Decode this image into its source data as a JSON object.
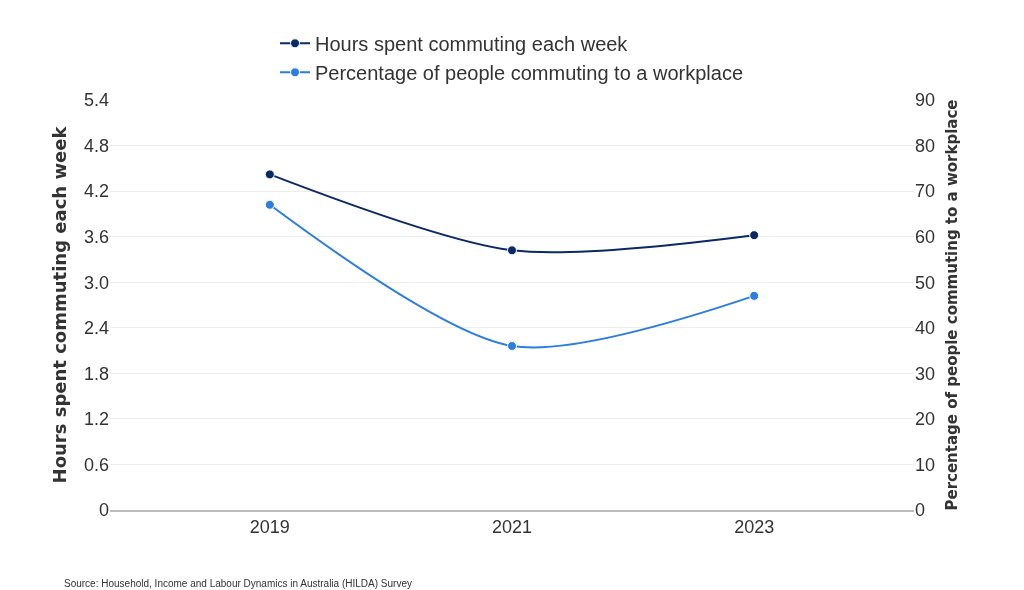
{
  "chart_data": {
    "type": "line",
    "categories": [
      "2019",
      "2021",
      "2023"
    ],
    "series": [
      {
        "name": "Hours spent commuting each week",
        "color": "#0a2a66",
        "values": [
          4.42,
          3.42,
          3.62
        ]
      },
      {
        "name": "Percentage of people commuting to a workplace",
        "color": "#2b7de1",
        "values": [
          67,
          36,
          47
        ],
        "axis": "y2"
      }
    ],
    "ylabel": "Hours spent commuting each week",
    "y2label": "Percentage of people commuting to a workplace",
    "ylim": [
      0,
      5.4
    ],
    "yticks": [
      {
        "value": 0,
        "label": "0"
      },
      0.6,
      1.2,
      1.8,
      {
        "value": 2.4,
        "label": "2.4"
      },
      {
        "value": 3,
        "label": "3.0"
      },
      3.6,
      4.2,
      4.8,
      5.4
    ],
    "y2lim": [
      0,
      90
    ],
    "y2ticks": [
      0,
      10,
      20,
      30,
      40,
      50,
      60,
      70,
      80,
      90
    ],
    "grid": "y",
    "legend": "top",
    "marker": "circle",
    "line_style": "solid",
    "annotations": [
      "Source: Household, Income and Labour Dynamics in Australia (HILDA) Survey"
    ]
  }
}
